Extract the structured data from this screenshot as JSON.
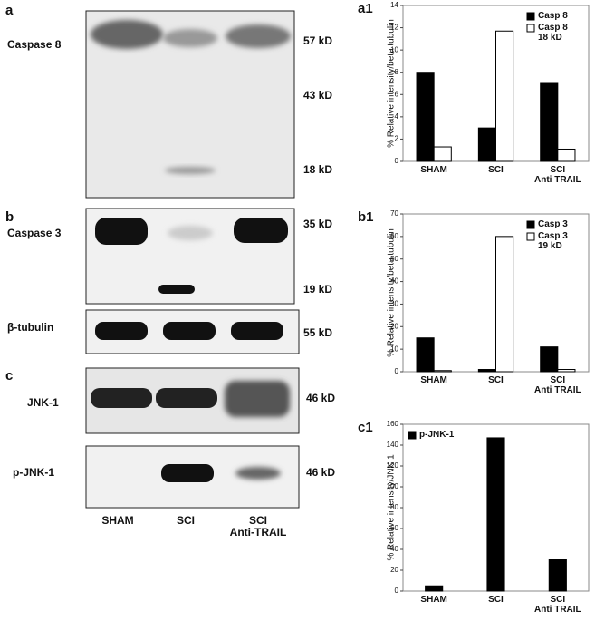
{
  "panels": {
    "a": {
      "label": "a",
      "protein": "Caspase 8",
      "markers": [
        "57 kD",
        "43 kD",
        "18 kD"
      ]
    },
    "b": {
      "label": "b",
      "protein": "Caspase 3",
      "markers": [
        "35 kD",
        "19 kD"
      ]
    },
    "tubulin": {
      "protein": "β-tubulin",
      "markers": [
        "55 kD"
      ]
    },
    "c": {
      "label": "c",
      "proteins": [
        "JNK-1",
        "p-JNK-1"
      ],
      "markers": [
        "46 kD",
        "46 kD"
      ]
    },
    "lanes": [
      "SHAM",
      "SCI",
      "SCI\nAnti-TRAIL"
    ]
  },
  "chart_data": [
    {
      "type": "bar",
      "panel_label": "a1",
      "y_label": "% Relative intensity/beta tubulin",
      "categories": [
        "SHAM",
        "SCI",
        "SCI\nAnti TRAIL"
      ],
      "series": [
        {
          "name": "Casp 8",
          "color": "#000000",
          "values": [
            8,
            3,
            7
          ]
        },
        {
          "name": "Casp 8\n18 kD",
          "color": "#ffffff",
          "values": [
            1.3,
            11.7,
            1.1
          ]
        }
      ],
      "ylim": [
        0,
        14
      ],
      "yticks": [
        0,
        2,
        4,
        6,
        8,
        10,
        12,
        14
      ],
      "legend": "upper right"
    },
    {
      "type": "bar",
      "panel_label": "b1",
      "y_label": "% Relative intensity/beta tubulin",
      "categories": [
        "SHAM",
        "SCI",
        "SCI\nAnti TRAIL"
      ],
      "series": [
        {
          "name": "Casp 3",
          "color": "#000000",
          "values": [
            15,
            1,
            11
          ]
        },
        {
          "name": "Casp 3\n19 kD",
          "color": "#ffffff",
          "values": [
            0.5,
            60,
            1
          ]
        }
      ],
      "ylim": [
        0,
        70
      ],
      "yticks": [
        0,
        10,
        20,
        30,
        40,
        50,
        60,
        70
      ],
      "legend": "upper right"
    },
    {
      "type": "bar",
      "panel_label": "c1",
      "y_label": "% Relative intensity/JNK 1",
      "categories": [
        "SHAM",
        "SCI",
        "SCI\nAnti TRAIL"
      ],
      "series": [
        {
          "name": "p-JNK-1",
          "color": "#000000",
          "values": [
            5,
            147,
            30
          ]
        }
      ],
      "ylim": [
        0,
        160
      ],
      "yticks": [
        0,
        20,
        40,
        60,
        80,
        100,
        120,
        140,
        160
      ],
      "legend": "upper left"
    }
  ]
}
